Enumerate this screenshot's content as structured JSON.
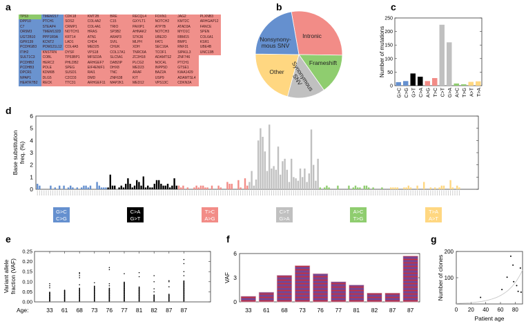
{
  "panel_labels": {
    "a": "a",
    "b": "b",
    "c": "c",
    "d": "d",
    "e": "e",
    "f": "f",
    "g": "g"
  },
  "colors": {
    "blue": "#6590cf",
    "black": "#000000",
    "red": "#f28c87",
    "gray": "#c0c0c0",
    "green": "#8fcd6f",
    "yellow": "#ffd781",
    "table_blue": "#6a93cf",
    "table_red": "#f0908b",
    "table_green": "#8dc96b"
  },
  "gene_table": {
    "columns": [
      [
        "TP53",
        "DPP10",
        "C7",
        "OR5M3",
        "UGT2B10",
        "GPR139",
        "PCDHGB3",
        "ITIH2",
        "SULT1C3",
        "PCDHB2",
        "PCDHB3",
        "DPCR1",
        "NPAP1",
        "HEATR7B2"
      ],
      [
        "TMEM217",
        "PTCH1",
        "STEAP4",
        "TMEM132D",
        "PPP1R9A",
        "KCNT2",
        "POM121L12",
        "KNSTRN",
        "COBL",
        "HERC2",
        "POLE",
        "KDM6B",
        "DLG5",
        "RECK"
      ],
      [
        "CDK18",
        "SOS2",
        "CRMP1",
        "NOTCH1",
        "KRT14",
        "LAD1",
        "COL4A5",
        "DYSF",
        "TP53BP1",
        "PHLDB2",
        "SPEG",
        "SUSD1",
        "C2CD3",
        "TTC31"
      ],
      [
        "KMT2B",
        "COL4A2",
        "COL4A1",
        "HRAS",
        "ATN1",
        "CHD4",
        "MED25",
        "VPS18",
        "MFSD2A",
        "ARHGEF7",
        "EIF4ENIF1",
        "RAI1",
        "DMD",
        "ARHGEF11"
      ],
      [
        "BRE",
        "C15",
        "TRIO",
        "SP3B2",
        "ARAP3",
        "SVIL",
        "CHUK",
        "COL17A1",
        "SLC5A1",
        "DAB2IP",
        "DHX8",
        "TNC",
        "ZNF638",
        "MAP2K1"
      ],
      [
        "RECQL4",
        "GXYLT1",
        "PAXIP1",
        "AHNAK2",
        "STK36",
        "MLPH",
        "XDH",
        "TNRC6A",
        "ZC3H18",
        "PLCG2",
        "MED23",
        "ARAF",
        "KIT",
        "MED12"
      ],
      [
        "FOXN1",
        "NOTCH2",
        "ATP7B",
        "NOTCH3",
        "UBE2O",
        "FAT1",
        "SEC16A",
        "TCOF1",
        "ADAMTS2",
        "NOC4L",
        "INPP5D",
        "BAZ2A",
        "USP9",
        "VPS13C"
      ],
      [
        "JAG2",
        "KMT2C",
        "ATAD3A",
        "MYO1C",
        "RBM15",
        "BMP1",
        "RNF31",
        "SIPA1L3",
        "ZNF746",
        "PTCH1",
        "GTSE1",
        "KIAA1429",
        "ADAMTSL4",
        "CDKN2A"
      ],
      [
        "PLXNB3",
        "ARHGAP12",
        "FANCE",
        "SPEN",
        "COL6A1",
        "KSR1",
        "UBE4B",
        "UNC13B"
      ]
    ]
  },
  "chart_data": [
    {
      "id": "b",
      "type": "pie",
      "labels": [
        "Intronic",
        "Frameshift",
        "Synonymous SNV",
        "Other",
        "Nonsynony-mous SNV"
      ],
      "label_lines": [
        [
          "Intronic"
        ],
        [
          "Frameshift"
        ],
        [
          "Synonymous",
          "SNV"
        ],
        [
          "Other"
        ],
        [
          "Nonsynony-",
          "mous SNV"
        ]
      ],
      "values_percent_est": [
        28,
        15,
        14,
        21,
        22
      ],
      "colors": [
        "#f28c87",
        "#8fcd6f",
        "#c0c0c0",
        "#ffd781",
        "#6590cf"
      ]
    },
    {
      "id": "c",
      "type": "bar",
      "categories": [
        "G>C",
        "C>G",
        "G>T",
        "C>A",
        "A>G",
        "T>C",
        "C>T",
        "G>A",
        "A>C",
        "T>G",
        "A>T",
        "T>A"
      ],
      "values": [
        13,
        17,
        45,
        33,
        17,
        28,
        225,
        160,
        8,
        5,
        14,
        16
      ],
      "colors": [
        "#6590cf",
        "#6590cf",
        "#000000",
        "#000000",
        "#f28c87",
        "#f28c87",
        "#c0c0c0",
        "#c0c0c0",
        "#8fcd6f",
        "#8fcd6f",
        "#ffd781",
        "#ffd781"
      ],
      "ylabel": "Number of mutations",
      "ylim": [
        0,
        250
      ],
      "yticks": [
        "0",
        "50",
        "100",
        "150",
        "200",
        "250"
      ]
    },
    {
      "id": "d",
      "type": "bar",
      "ylabel_lines": [
        "Base substitution",
        "freq. (%)"
      ],
      "ylim": [
        0,
        6
      ],
      "yticks": [
        "0",
        "1",
        "2",
        "3",
        "4",
        "5",
        "6"
      ],
      "groups": [
        {
          "legend": [
            "G>C",
            "C>G"
          ],
          "color": "#6590cf",
          "text_color": "#ffffff",
          "values": [
            0.45,
            0.3,
            0,
            0,
            0,
            0,
            0.3,
            0,
            0.15,
            0,
            0.3,
            0,
            0.3,
            0,
            0.15,
            0.3,
            0.15,
            0,
            0.15,
            0,
            0.15,
            0.3,
            0.3,
            0.15,
            0.3,
            0,
            0,
            0.6,
            0.3,
            0.15,
            0.15,
            0.15
          ]
        },
        {
          "legend": [
            "C>A",
            "G>T"
          ],
          "color": "#000000",
          "text_color": "#ffffff",
          "values": [
            0.15,
            1.2,
            0.3,
            0.3,
            0,
            0.15,
            0.3,
            0.15,
            0.45,
            0.9,
            0.45,
            0.15,
            0.3,
            0.75,
            0.6,
            0.3,
            1.05,
            0.15,
            0.3,
            0.15,
            0.15,
            0.45,
            0.75,
            0.75,
            0.45,
            0.3,
            0.3,
            0.45,
            0.15,
            0.3,
            0.9,
            0.3
          ]
        },
        {
          "legend": [
            "T>C",
            "A>G"
          ],
          "color": "#f28c87",
          "text_color": "#ffffff",
          "values": [
            0.3,
            0.15,
            0.3,
            0,
            0.15,
            0,
            0,
            0.15,
            0.3,
            0.15,
            0.3,
            0.3,
            0.15,
            0.15,
            0,
            0.3,
            0,
            0,
            0.3,
            0.15,
            0,
            0,
            0.6,
            0.45,
            0.45,
            0,
            0,
            0.75,
            0.15,
            0,
            0.9,
            0.3
          ]
        },
        {
          "legend": [
            "C>T",
            "G>A"
          ],
          "color": "#c0c0c0",
          "text_color": "#ffffff",
          "values": [
            0.6,
            1.5,
            0.3,
            0.8,
            4.0,
            5.0,
            4.3,
            3.1,
            1.5,
            5.3,
            1.7,
            1.9,
            1.6,
            3.5,
            1.2,
            2.3,
            2.5,
            1.6,
            0.6,
            2.5,
            1.0,
            0.9,
            0.7,
            1.7,
            1.0,
            1.7,
            0.6,
            1.3,
            4.9,
            2.0,
            0.7,
            2.5
          ]
        },
        {
          "legend": [
            "A>C",
            "T>G"
          ],
          "color": "#8fcd6f",
          "text_color": "#ffffff",
          "values": [
            0.15,
            0,
            0.15,
            0.3,
            0.15,
            0,
            0,
            0,
            0.3,
            0,
            0,
            0,
            0,
            0.3,
            0,
            0.15,
            0.3,
            0.15,
            0.15,
            0,
            0.3,
            0.3,
            0.15,
            0,
            0.15,
            0,
            0,
            0,
            0.15,
            0,
            0,
            0
          ]
        },
        {
          "legend": [
            "T>A",
            "A>T"
          ],
          "color": "#ffd781",
          "text_color": "#ffffff",
          "values": [
            0.15,
            0.15,
            0.15,
            0.15,
            0,
            0,
            0.15,
            0.15,
            0.3,
            0.15,
            0,
            0,
            0.3,
            0,
            0,
            0.6,
            0,
            0,
            0.15,
            0,
            0.15,
            0,
            0.15,
            0.3,
            0.3,
            0,
            0,
            0.75,
            0.15,
            0,
            0.3,
            0.15
          ]
        }
      ]
    },
    {
      "id": "e",
      "type": "scatter",
      "ylabel_lines": [
        "Variant allele",
        "fraction (VAF)"
      ],
      "xlabel_prefix": "Age:",
      "categories": [
        "33",
        "61",
        "68",
        "73",
        "76",
        "77",
        "81",
        "82",
        "87",
        "87"
      ],
      "ylim": [
        0,
        0.25
      ],
      "yticks": [
        "0.00",
        "0.05",
        "0.10",
        "0.15",
        "0.20",
        "0.25"
      ],
      "columns": [
        {
          "dense_max": 0.05,
          "outliers": [
            0.07,
            0.08,
            0.09
          ]
        },
        {
          "dense_max": 0.06,
          "outliers": []
        },
        {
          "dense_max": 0.07,
          "outliers": [
            0.085,
            0.12,
            0.13,
            0.14,
            0.145
          ]
        },
        {
          "dense_max": 0.08,
          "outliers": [
            0.095
          ]
        },
        {
          "dense_max": 0.07,
          "outliers": [
            0.08,
            0.09,
            0.16,
            0.17
          ]
        },
        {
          "dense_max": 0.1,
          "outliers": [
            0.14
          ]
        },
        {
          "dense_max": 0.075,
          "outliers": [
            0.125,
            0.145
          ]
        },
        {
          "dense_max": 0.035,
          "outliers": [
            0.05,
            0.065,
            0.1,
            0.13
          ]
        },
        {
          "dense_max": 0.04,
          "outliers": [
            0.075,
            0.1,
            0.105
          ]
        },
        {
          "dense_max": 0.105,
          "outliers": [
            0.13,
            0.15,
            0.19,
            0.21
          ]
        }
      ]
    },
    {
      "id": "f",
      "type": "bar",
      "ylabel": "VAF",
      "categories": [
        "33",
        "61",
        "68",
        "73",
        "76",
        "77",
        "81",
        "82",
        "87",
        "87"
      ],
      "values": [
        0.7,
        1.2,
        3.3,
        4.5,
        3.5,
        2.5,
        2.1,
        1.1,
        1.1,
        5.7
      ],
      "ylim": [
        0,
        6
      ],
      "yticks": [
        "0",
        "3",
        "6"
      ]
    },
    {
      "id": "g",
      "type": "scatter",
      "xlabel": "Patient age",
      "ylabel": "Number of clones",
      "xlim": [
        0,
        90
      ],
      "ylim": [
        0,
        200
      ],
      "xticks": [
        "0",
        "20",
        "40",
        "60",
        "80"
      ],
      "yticks": [
        "100",
        "200"
      ],
      "points": [
        [
          33,
          25
        ],
        [
          62,
          55
        ],
        [
          69,
          102
        ],
        [
          74,
          182
        ],
        [
          77,
          148
        ],
        [
          78,
          85
        ],
        [
          82,
          70
        ],
        [
          84,
          48
        ],
        [
          87,
          137
        ],
        [
          88,
          45
        ]
      ],
      "fit": {
        "type": "exponential",
        "a": 1.97,
        "b": 0.0465
      }
    }
  ]
}
